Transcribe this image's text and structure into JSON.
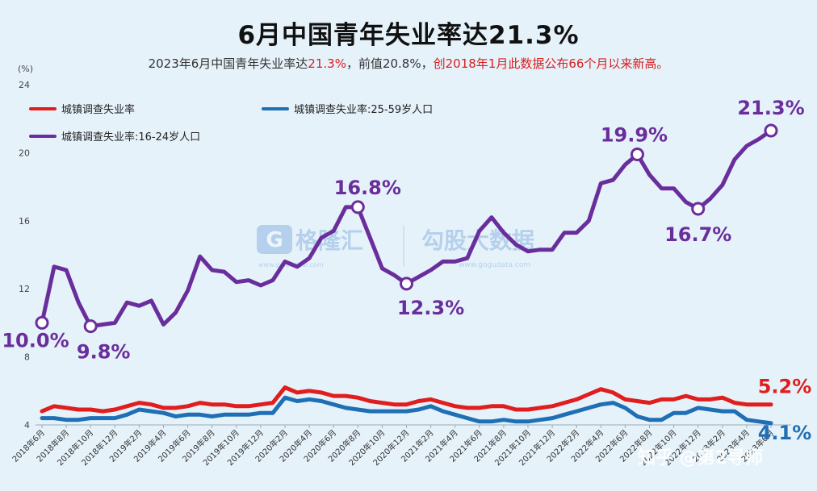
{
  "title": "6月中国青年失业率达21.3%",
  "subtitle": {
    "part1": "2023年6月中国青年失业率达",
    "highlight_value": "21.3%",
    "part2": "，前值20.8%，",
    "highlight_note": "创2018年1月此数据公布66个月以来新高。"
  },
  "watermarks": {
    "logo_text": "格隆汇",
    "logo_url": "www.gelonghui.com",
    "brand_text": "勾股大数据",
    "brand_url": "www.gogudata.com",
    "corner_text": "知乎 @第2导师"
  },
  "chart_data": {
    "type": "line",
    "yunit": "(%)",
    "ylim": [
      4,
      24
    ],
    "yticks": [
      4,
      8,
      12,
      16,
      20,
      24
    ],
    "grid": false,
    "legend_position": "top-left",
    "x": [
      "2018年6月",
      "2018年7月",
      "2018年8月",
      "2018年9月",
      "2018年10月",
      "2018年11月",
      "2018年12月",
      "2019年1月",
      "2019年2月",
      "2019年3月",
      "2019年4月",
      "2019年5月",
      "2019年6月",
      "2019年7月",
      "2019年8月",
      "2019年9月",
      "2019年10月",
      "2019年11月",
      "2019年12月",
      "2020年1月",
      "2020年2月",
      "2020年3月",
      "2020年4月",
      "2020年5月",
      "2020年6月",
      "2020年7月",
      "2020年8月",
      "2020年9月",
      "2020年10月",
      "2020年11月",
      "2020年12月",
      "2021年1月",
      "2021年2月",
      "2021年3月",
      "2021年4月",
      "2021年5月",
      "2021年6月",
      "2021年7月",
      "2021年8月",
      "2021年9月",
      "2021年10月",
      "2021年11月",
      "2021年12月",
      "2022年1月",
      "2022年2月",
      "2022年3月",
      "2022年4月",
      "2022年5月",
      "2022年6月",
      "2022年7月",
      "2022年8月",
      "2022年9月",
      "2022年10月",
      "2022年11月",
      "2022年12月",
      "2023年1月",
      "2023年2月",
      "2023年3月",
      "2023年4月",
      "2023年5月",
      "2023年6月"
    ],
    "xtick_labels": [
      "2018年6月",
      "2018年8月",
      "2018年10月",
      "2018年12月",
      "2019年2月",
      "2019年4月",
      "2019年6月",
      "2019年8月",
      "2019年10月",
      "2019年12月",
      "2020年2月",
      "2020年4月",
      "2020年6月",
      "2020年8月",
      "2020年10月",
      "2020年12月",
      "2021年2月",
      "2021年4月",
      "2021年6月",
      "2021年8月",
      "2021年10月",
      "2021年12月",
      "2022年2月",
      "2022年4月",
      "2022年6月",
      "2022年8月",
      "2022年10月",
      "2022年12月",
      "2023年2月",
      "2023年4月",
      "2023年6月"
    ],
    "series": [
      {
        "name": "城镇调查失业率",
        "color": "#e01e1e",
        "values": [
          4.8,
          5.1,
          5.0,
          4.9,
          4.9,
          4.8,
          4.9,
          5.1,
          5.3,
          5.2,
          5.0,
          5.0,
          5.1,
          5.3,
          5.2,
          5.2,
          5.1,
          5.1,
          5.2,
          5.3,
          6.2,
          5.9,
          6.0,
          5.9,
          5.7,
          5.7,
          5.6,
          5.4,
          5.3,
          5.2,
          5.2,
          5.4,
          5.5,
          5.3,
          5.1,
          5.0,
          5.0,
          5.1,
          5.1,
          4.9,
          4.9,
          5.0,
          5.1,
          5.3,
          5.5,
          5.8,
          6.1,
          5.9,
          5.5,
          5.4,
          5.3,
          5.5,
          5.5,
          5.7,
          5.5,
          5.5,
          5.6,
          5.3,
          5.2,
          5.2,
          5.2
        ],
        "end_label": "5.2%"
      },
      {
        "name": "城镇调查失业率:25-59岁人口",
        "color": "#1f6fb5",
        "values": [
          4.4,
          4.4,
          4.3,
          4.3,
          4.4,
          4.4,
          4.4,
          4.6,
          4.9,
          4.8,
          4.7,
          4.5,
          4.6,
          4.6,
          4.5,
          4.6,
          4.6,
          4.6,
          4.7,
          4.7,
          5.6,
          5.4,
          5.5,
          5.4,
          5.2,
          5.0,
          4.9,
          4.8,
          4.8,
          4.8,
          4.8,
          4.9,
          5.1,
          4.8,
          4.6,
          4.4,
          4.2,
          4.2,
          4.3,
          4.2,
          4.2,
          4.3,
          4.4,
          4.6,
          4.8,
          5.0,
          5.2,
          5.3,
          5.0,
          4.5,
          4.3,
          4.3,
          4.7,
          4.7,
          5.0,
          4.9,
          4.8,
          4.8,
          4.3,
          4.2,
          4.1
        ],
        "end_label": "4.1%"
      },
      {
        "name": "城镇调查失业率:16-24岁人口",
        "color": "#6a2e9c",
        "values": [
          10.0,
          13.3,
          13.1,
          11.2,
          9.8,
          9.9,
          10.0,
          11.2,
          11.0,
          11.3,
          9.9,
          10.6,
          11.9,
          13.9,
          13.1,
          13.0,
          12.4,
          12.5,
          12.2,
          12.5,
          13.6,
          13.3,
          13.8,
          15.0,
          15.4,
          16.8,
          16.8,
          15.0,
          13.2,
          12.8,
          12.3,
          12.7,
          13.1,
          13.6,
          13.6,
          13.8,
          15.4,
          16.2,
          15.3,
          14.6,
          14.2,
          14.3,
          14.3,
          15.3,
          15.3,
          16.0,
          18.2,
          18.4,
          19.3,
          19.9,
          18.7,
          17.9,
          17.9,
          17.1,
          16.7,
          17.3,
          18.1,
          19.6,
          20.4,
          20.8,
          21.3
        ],
        "highlights": [
          {
            "index": 0,
            "label": "10.0%"
          },
          {
            "index": 4,
            "label": "9.8%"
          },
          {
            "index": 26,
            "label": "16.8%"
          },
          {
            "index": 30,
            "label": "12.3%"
          },
          {
            "index": 49,
            "label": "19.9%"
          },
          {
            "index": 54,
            "label": "16.7%"
          },
          {
            "index": 60,
            "label": "21.3%"
          }
        ]
      }
    ]
  }
}
